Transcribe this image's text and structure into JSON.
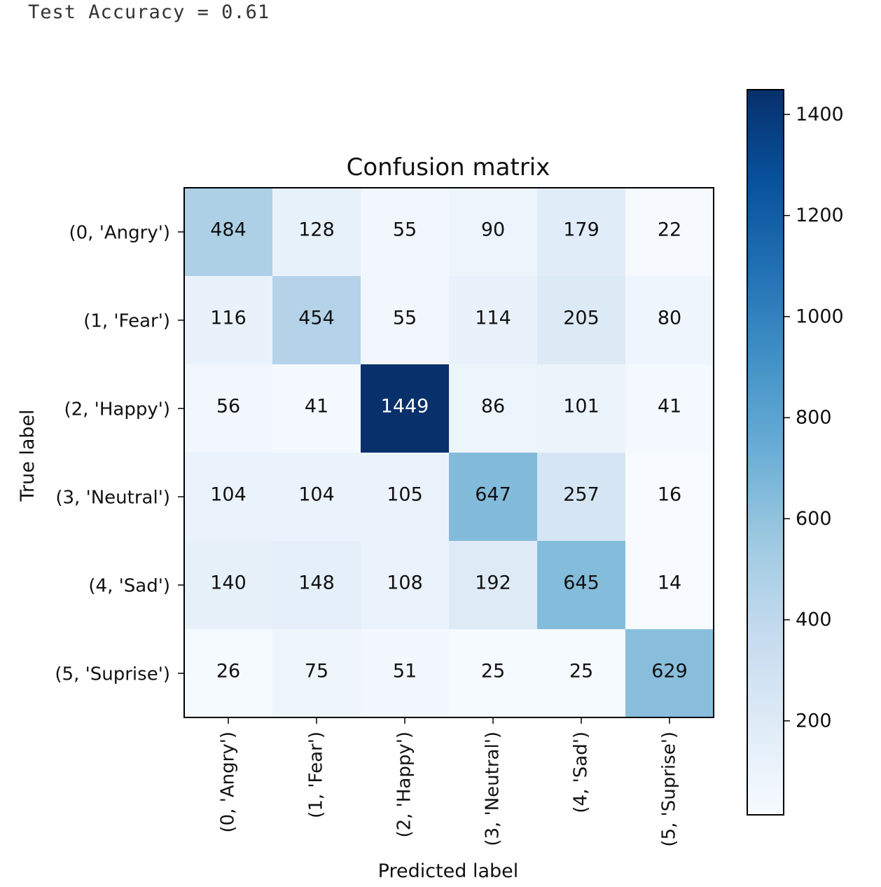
{
  "output": {
    "accuracy_text": "Test Accuracy = 0.61"
  },
  "chart_data": {
    "type": "heatmap",
    "title": "Confusion matrix",
    "xlabel": "Predicted label",
    "ylabel": "True label",
    "x_categories": [
      "(0, 'Angry')",
      "(1, 'Fear')",
      "(2, 'Happy')",
      "(3, 'Neutral')",
      "(4, 'Sad')",
      "(5, 'Suprise')"
    ],
    "y_categories": [
      "(0, 'Angry')",
      "(1, 'Fear')",
      "(2, 'Happy')",
      "(3, 'Neutral')",
      "(4, 'Sad')",
      "(5, 'Suprise')"
    ],
    "values": [
      [
        484,
        128,
        55,
        90,
        179,
        22
      ],
      [
        116,
        454,
        55,
        114,
        205,
        80
      ],
      [
        56,
        41,
        1449,
        86,
        101,
        41
      ],
      [
        104,
        104,
        105,
        647,
        257,
        16
      ],
      [
        140,
        148,
        108,
        192,
        645,
        14
      ],
      [
        26,
        75,
        51,
        25,
        25,
        629
      ]
    ],
    "colormap": "Blues",
    "colorbar": {
      "ticks": [
        200,
        400,
        600,
        800,
        1000,
        1200,
        1400
      ],
      "range": [
        14,
        1449
      ]
    }
  }
}
